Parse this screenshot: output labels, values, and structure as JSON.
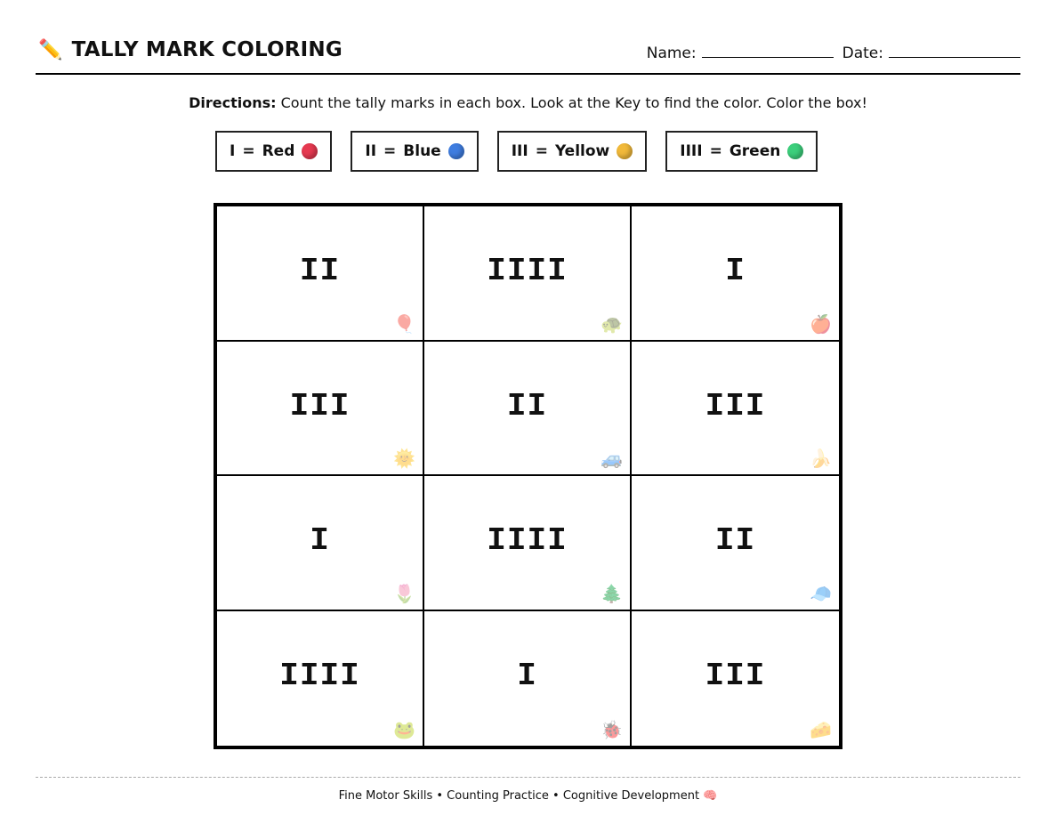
{
  "header": {
    "icon": "pencil-icon",
    "icon_glyph": "✏️",
    "title": "TALLY MARK COLORING",
    "name_label": "Name:",
    "date_label": "Date:"
  },
  "directions": {
    "label": "Directions:",
    "text": " Count the tally marks in each box. Look at the Key to find the color. Color the box!"
  },
  "key": [
    {
      "tally": "I",
      "eq": "=",
      "color_name": "Red",
      "color": "#e63950"
    },
    {
      "tally": "II",
      "eq": "=",
      "color_name": "Blue",
      "color": "#3f7de0"
    },
    {
      "tally": "III",
      "eq": "=",
      "color_name": "Yellow",
      "color": "#f1b93a"
    },
    {
      "tally": "IIII",
      "eq": "=",
      "color_name": "Green",
      "color": "#3ccf7c"
    }
  ],
  "cells": [
    {
      "tally": "II",
      "picture": "🎈",
      "icon": "balloon-icon"
    },
    {
      "tally": "IIII",
      "picture": "🐢",
      "icon": "turtle-icon"
    },
    {
      "tally": "I",
      "picture": "🍎",
      "icon": "apple-icon"
    },
    {
      "tally": "III",
      "picture": "🌞",
      "icon": "sun-icon"
    },
    {
      "tally": "II",
      "picture": "🚙",
      "icon": "car-icon"
    },
    {
      "tally": "III",
      "picture": "🍌",
      "icon": "banana-icon"
    },
    {
      "tally": "I",
      "picture": "🌷",
      "icon": "tulip-icon"
    },
    {
      "tally": "IIII",
      "picture": "🌲",
      "icon": "tree-icon"
    },
    {
      "tally": "II",
      "picture": "🧢",
      "icon": "cap-icon"
    },
    {
      "tally": "IIII",
      "picture": "🐸",
      "icon": "frog-icon"
    },
    {
      "tally": "I",
      "picture": "🐞",
      "icon": "ladybug-icon"
    },
    {
      "tally": "III",
      "picture": "🧀",
      "icon": "cheese-icon"
    }
  ],
  "footer": {
    "text": "Fine Motor Skills • Counting Practice • Cognitive Development",
    "icon": "brain-icon",
    "icon_glyph": "🧠"
  }
}
